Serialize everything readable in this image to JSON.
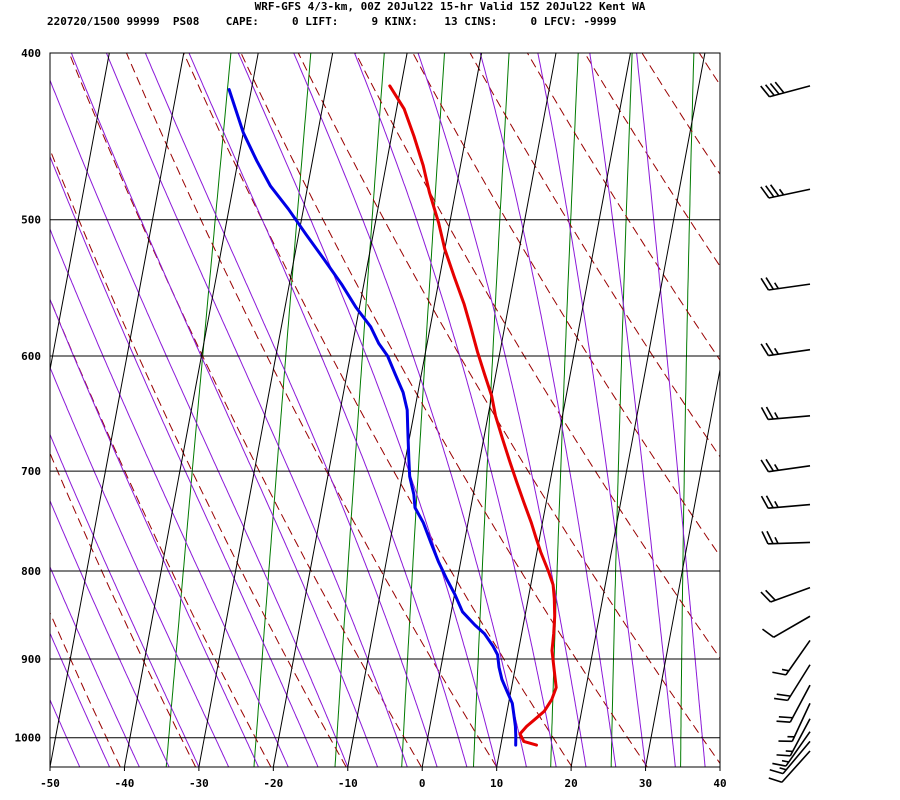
{
  "header": {
    "line1": "WRF-GFS 4/3-km, 00Z 20Jul22 15-hr Valid 15Z 20Jul22 Kent WA",
    "line2": "220720/1500 99999  PS08    CAPE:     0 LIFT:     9 KINX:    13 CINS:     0 LFCV: -9999"
  },
  "chart_data": {
    "type": "line",
    "title": "WRF-GFS 4/3-km, 00Z 20Jul22 15-hr Valid 15Z 20Jul22 Kent WA",
    "xlabel": "",
    "ylabel": "",
    "x_ticks": [
      "-50",
      "-40",
      "-30",
      "-20",
      "-10",
      "0",
      "10",
      "20",
      "30",
      "40"
    ],
    "xlim": [
      -50,
      40
    ],
    "y_ticks": [
      "400",
      "500",
      "600",
      "700",
      "800",
      "900",
      "1000"
    ],
    "ylim": [
      1040,
      400
    ],
    "y_scale": "log",
    "grid": true,
    "series": [
      {
        "color": "#e60000",
        "points": [
          [
            14.8,
            1010
          ],
          [
            13.0,
            1005
          ],
          [
            12.3,
            995
          ],
          [
            13.0,
            985
          ],
          [
            14.0,
            975
          ],
          [
            15.0,
            965
          ],
          [
            15.7,
            950
          ],
          [
            16.0,
            935
          ],
          [
            15.5,
            920
          ],
          [
            15.0,
            905
          ],
          [
            14.5,
            890
          ],
          [
            14.3,
            870
          ],
          [
            14.0,
            850
          ],
          [
            13.5,
            830
          ],
          [
            13.0,
            815
          ],
          [
            12.0,
            800
          ],
          [
            10.5,
            780
          ],
          [
            9.5,
            765
          ],
          [
            8.5,
            750
          ],
          [
            7.0,
            730
          ],
          [
            5.5,
            710
          ],
          [
            4.0,
            690
          ],
          [
            2.5,
            670
          ],
          [
            1.0,
            650
          ],
          [
            0.0,
            633
          ],
          [
            -1.5,
            615
          ],
          [
            -3.0,
            597
          ],
          [
            -4.5,
            578
          ],
          [
            -6.0,
            560
          ],
          [
            -8.0,
            540
          ],
          [
            -10.0,
            520
          ],
          [
            -11.5,
            502
          ],
          [
            -13.5,
            482
          ],
          [
            -15.0,
            465
          ],
          [
            -17.0,
            447
          ],
          [
            -19.0,
            431
          ],
          [
            -21.5,
            418
          ]
        ]
      },
      {
        "color": "#0000e6",
        "points": [
          [
            12.0,
            1010
          ],
          [
            11.8,
            998
          ],
          [
            11.5,
            985
          ],
          [
            11.0,
            970
          ],
          [
            10.5,
            955
          ],
          [
            9.5,
            940
          ],
          [
            8.5,
            925
          ],
          [
            7.8,
            910
          ],
          [
            7.3,
            895
          ],
          [
            6.5,
            885
          ],
          [
            5.0,
            870
          ],
          [
            3.5,
            860
          ],
          [
            1.5,
            845
          ],
          [
            0.0,
            825
          ],
          [
            -1.5,
            808
          ],
          [
            -3.0,
            790
          ],
          [
            -4.5,
            770
          ],
          [
            -6.0,
            750
          ],
          [
            -7.5,
            735
          ],
          [
            -8.0,
            722
          ],
          [
            -9.0,
            705
          ],
          [
            -9.5,
            690
          ],
          [
            -10.0,
            675
          ],
          [
            -10.5,
            660
          ],
          [
            -11.0,
            645
          ],
          [
            -12.0,
            630
          ],
          [
            -13.5,
            615
          ],
          [
            -15.0,
            600
          ],
          [
            -16.5,
            590
          ],
          [
            -18.0,
            577
          ],
          [
            -20.5,
            562
          ],
          [
            -23.0,
            545
          ],
          [
            -26.0,
            527
          ],
          [
            -29.0,
            510
          ],
          [
            -32.0,
            493
          ],
          [
            -35.0,
            478
          ],
          [
            -37.5,
            462
          ],
          [
            -40.0,
            445
          ],
          [
            -43.0,
            420
          ]
        ]
      }
    ],
    "wind_barbs": [
      {
        "pressure": 418,
        "direction": 255,
        "speed": 40
      },
      {
        "pressure": 480,
        "direction": 258,
        "speed": 35
      },
      {
        "pressure": 545,
        "direction": 262,
        "speed": 25
      },
      {
        "pressure": 595,
        "direction": 262,
        "speed": 25
      },
      {
        "pressure": 650,
        "direction": 265,
        "speed": 25
      },
      {
        "pressure": 695,
        "direction": 262,
        "speed": 25
      },
      {
        "pressure": 732,
        "direction": 265,
        "speed": 25
      },
      {
        "pressure": 770,
        "direction": 268,
        "speed": 25
      },
      {
        "pressure": 818,
        "direction": 250,
        "speed": 20
      },
      {
        "pressure": 850,
        "direction": 240,
        "speed": 10
      },
      {
        "pressure": 878,
        "direction": 215,
        "speed": 15
      },
      {
        "pressure": 907,
        "direction": 212,
        "speed": 20
      },
      {
        "pressure": 932,
        "direction": 208,
        "speed": 20
      },
      {
        "pressure": 955,
        "direction": 205,
        "speed": 15
      },
      {
        "pressure": 975,
        "direction": 208,
        "speed": 15
      },
      {
        "pressure": 992,
        "direction": 215,
        "speed": 15
      },
      {
        "pressure": 1005,
        "direction": 220,
        "speed": 15
      },
      {
        "pressure": 1018,
        "direction": 222,
        "speed": 10
      }
    ],
    "colors": {
      "temperature": "#e60000",
      "dewpoint": "#0000e6",
      "dry_adiabat": "#990000",
      "moist_adiabat": "#8c1ad9",
      "mixing_ratio": "#007a00",
      "grid": "#000000"
    }
  }
}
